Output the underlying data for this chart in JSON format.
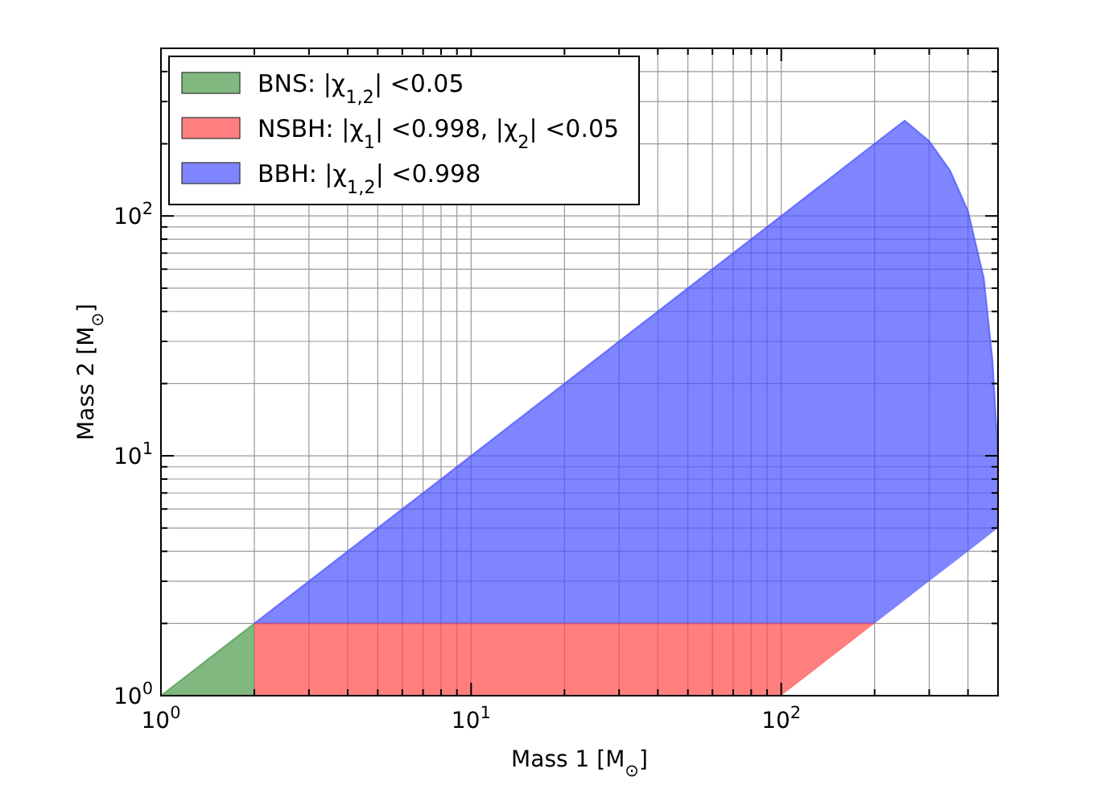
{
  "chart_data": {
    "type": "line",
    "xlabel": "Mass 1 [M$_{⊙}$]",
    "ylabel": "Mass 2 [M$_{⊙}$]",
    "log": "xy",
    "grid": true,
    "legend": "top left",
    "xlim": [
      1,
      500
    ],
    "ylim": [
      1,
      500
    ],
    "xticks": [
      {
        "value": 1,
        "label": "10$^{0}$"
      },
      {
        "value": 2,
        "label": null
      },
      {
        "value": 3,
        "label": null
      },
      {
        "value": 4,
        "label": null
      },
      {
        "value": 5,
        "label": null
      },
      {
        "value": 6,
        "label": null
      },
      {
        "value": 7,
        "label": null
      },
      {
        "value": 8,
        "label": null
      },
      {
        "value": 9,
        "label": null
      },
      {
        "value": 10,
        "label": "10$^{1}$"
      },
      {
        "value": 20,
        "label": null
      },
      {
        "value": 30,
        "label": null
      },
      {
        "value": 40,
        "label": null
      },
      {
        "value": 50,
        "label": null
      },
      {
        "value": 60,
        "label": null
      },
      {
        "value": 70,
        "label": null
      },
      {
        "value": 80,
        "label": null
      },
      {
        "value": 90,
        "label": null
      },
      {
        "value": 100,
        "label": "10$^{2}$"
      },
      {
        "value": 200,
        "label": null
      },
      {
        "value": 300,
        "label": null
      },
      {
        "value": 400,
        "label": null
      }
    ],
    "yticks": [
      {
        "value": 1,
        "label": "10$^{0}$"
      },
      {
        "value": 2,
        "label": null
      },
      {
        "value": 3,
        "label": null
      },
      {
        "value": 4,
        "label": null
      },
      {
        "value": 5,
        "label": null
      },
      {
        "value": 6,
        "label": null
      },
      {
        "value": 7,
        "label": null
      },
      {
        "value": 8,
        "label": null
      },
      {
        "value": 9,
        "label": null
      },
      {
        "value": 10,
        "label": "10$^{1}$"
      },
      {
        "value": 20,
        "label": null
      },
      {
        "value": 30,
        "label": null
      },
      {
        "value": 40,
        "label": null
      },
      {
        "value": 50,
        "label": null
      },
      {
        "value": 60,
        "label": null
      },
      {
        "value": 70,
        "label": null
      },
      {
        "value": 80,
        "label": null
      },
      {
        "value": 90,
        "label": null
      },
      {
        "value": 100,
        "label": "10$^{2}$"
      },
      {
        "value": 200,
        "label": null
      },
      {
        "value": 300,
        "label": null
      },
      {
        "value": 400,
        "label": null
      }
    ],
    "series": [
      {
        "name": "BNS: |χ$_{1,2}$| <0.05",
        "color": "#4a9a4a",
        "x": [
          1,
          2
        ],
        "values": [
          1,
          2
        ],
        "upper": [
          1,
          2
        ],
        "lower": [
          1,
          1
        ]
      },
      {
        "name": "NSBH: |χ$_{1}$| <0.998, |χ$_{2}$| <0.05",
        "color": "#ff4848",
        "x": [
          2,
          100,
          200
        ],
        "values": [
          2,
          2,
          2
        ],
        "upper": [
          2,
          2,
          2
        ],
        "lower": [
          1,
          1,
          2
        ]
      },
      {
        "name": "BBH: |χ$_{1,2}$| <0.998",
        "color": "#4850ff",
        "x": [
          2,
          200,
          250,
          300,
          350,
          400,
          450,
          480,
          500
        ],
        "values": [
          2,
          200,
          250,
          205,
          155,
          105,
          55,
          25,
          10
        ],
        "upper": [
          2,
          200,
          250,
          205,
          155,
          105,
          55,
          25,
          10
        ],
        "lower": [
          2,
          2,
          2.5,
          3,
          3.5,
          4,
          4.5,
          4.8,
          5
        ]
      }
    ]
  }
}
